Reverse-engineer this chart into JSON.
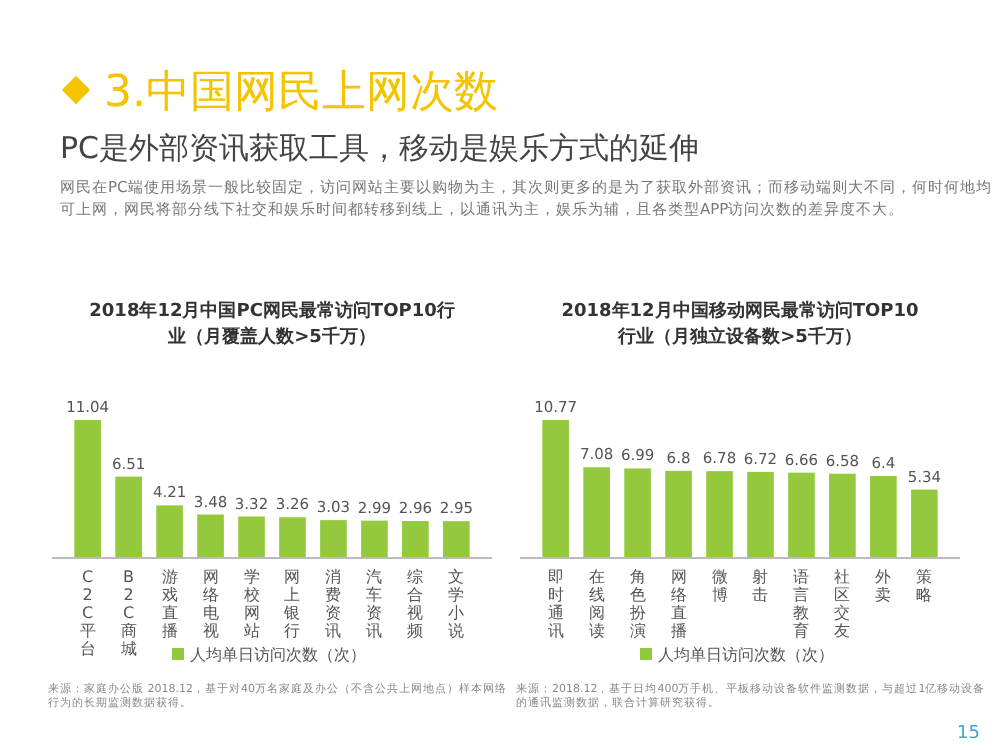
{
  "chart_data": [
    {
      "type": "other",
      "title": "3.中国网民上网次数",
      "subtitle": "PC是外部资讯获取工具，移动是娱乐方式的延伸",
      "annotations": [
        "网民在PC端使用场景一般比较固定，访问网站主要以购物为主，其次则更多的是为了获取外部资讯；而移动端则大不同，何时何地均可上网，网民将部分线下社交和娱乐时间都转移到线上，以通讯为主，娱乐为辅，且各类型APP访问次数的差异度不大。",
        "15"
      ]
    },
    {
      "type": "bar",
      "title": "2018年12月中国PC网民最常访问TOP10行业（月覆盖人数>5千万）",
      "categories": [
        "C2C平台",
        "B2C商城",
        "游戏直播",
        "网络电视",
        "学校网站",
        "网上银行",
        "消费资讯",
        "汽车资讯",
        "综合视频",
        "文学小说"
      ],
      "series": [
        {
          "name": "人均单日访问次数（次）",
          "color": "#95c93d",
          "values": [
            11.04,
            6.51,
            4.21,
            3.48,
            3.32,
            3.26,
            3.03,
            2.99,
            2.96,
            2.95
          ]
        }
      ],
      "data_labels": true,
      "legend": "bottom",
      "annotations": [
        "来源：家庭办公版 2018.12，基于对40万名家庭及办公（不含公共上网地点）样本网络行为的长期监测数据获得。"
      ]
    },
    {
      "type": "bar",
      "title": "2018年12月中国移动网民最常访问TOP10行业（月独立设备数>5千万）",
      "categories": [
        "即时通讯",
        "在线阅读",
        "角色扮演",
        "网络直播",
        "微博",
        "射击",
        "语言教育",
        "社区交友",
        "外卖",
        "策略"
      ],
      "series": [
        {
          "name": "人均单日访问次数（次）",
          "color": "#95c93d",
          "values": [
            10.77,
            7.08,
            6.99,
            6.8,
            6.78,
            6.72,
            6.66,
            6.58,
            6.4,
            5.34
          ]
        }
      ],
      "data_labels": true,
      "legend": "bottom",
      "annotations": [
        "来源：2018.12，基于日均400万手机、平板移动设备软件监测数据，与超过1亿移动设备的通讯监测数据，联合计算研究获得。"
      ]
    }
  ]
}
